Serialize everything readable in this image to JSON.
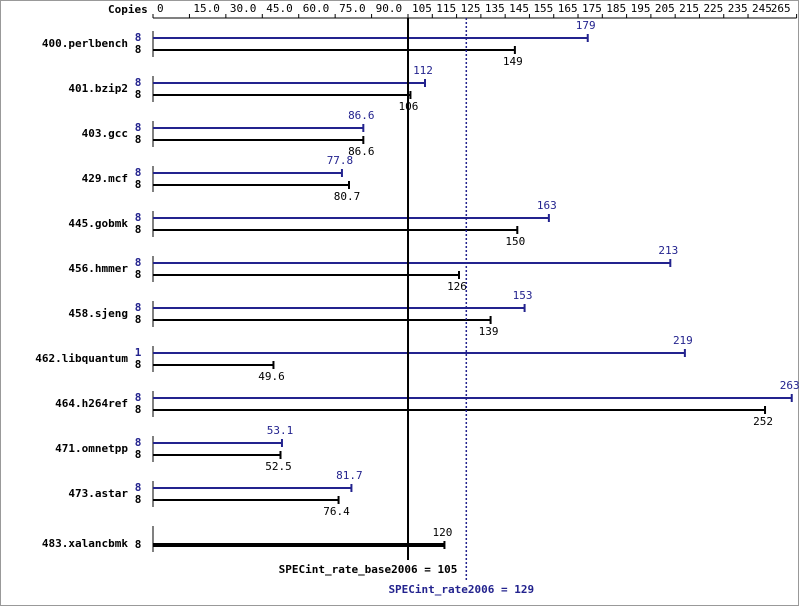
{
  "chart_data": {
    "type": "bar",
    "copies_label": "Copies",
    "categories": [
      "400.perlbench",
      "401.bzip2",
      "403.gcc",
      "429.mcf",
      "445.gobmk",
      "456.hmmer",
      "458.sjeng",
      "462.libquantum",
      "464.h264ref",
      "471.omnetpp",
      "473.astar",
      "483.xalancbmk"
    ],
    "series": [
      {
        "color": "#23238e",
        "values": [
          179,
          112,
          86.6,
          77.8,
          163,
          213,
          153,
          219,
          263,
          53.1,
          81.7,
          null
        ],
        "copies": [
          8,
          8,
          8,
          8,
          8,
          8,
          8,
          1,
          8,
          8,
          8,
          null
        ]
      },
      {
        "color": "#000000",
        "values": [
          149,
          106,
          86.6,
          80.7,
          150,
          126,
          139,
          49.6,
          252,
          52.5,
          76.4,
          120
        ],
        "copies": [
          8,
          8,
          8,
          8,
          8,
          8,
          8,
          8,
          8,
          8,
          8,
          8
        ]
      }
    ],
    "xlim": [
      0,
      265
    ],
    "xticks": [
      0,
      {
        "value": 15,
        "label": "15.0"
      },
      {
        "value": 30,
        "label": "30.0"
      },
      {
        "value": 45,
        "label": "45.0"
      },
      {
        "value": 60,
        "label": "60.0"
      },
      {
        "value": 75,
        "label": "75.0"
      },
      {
        "value": 90,
        "label": "90.0"
      },
      105,
      115,
      125,
      135,
      145,
      155,
      165,
      175,
      185,
      195,
      205,
      215,
      225,
      235,
      245,
      265
    ],
    "reference_lines": [
      {
        "label": "SPECint_rate_base2006 = 105",
        "value": 105,
        "color": "#000000",
        "style": "solid"
      },
      {
        "label": "SPECint_rate2006 = 129",
        "value": 129,
        "color": "#23238e",
        "style": "dotted"
      }
    ]
  }
}
